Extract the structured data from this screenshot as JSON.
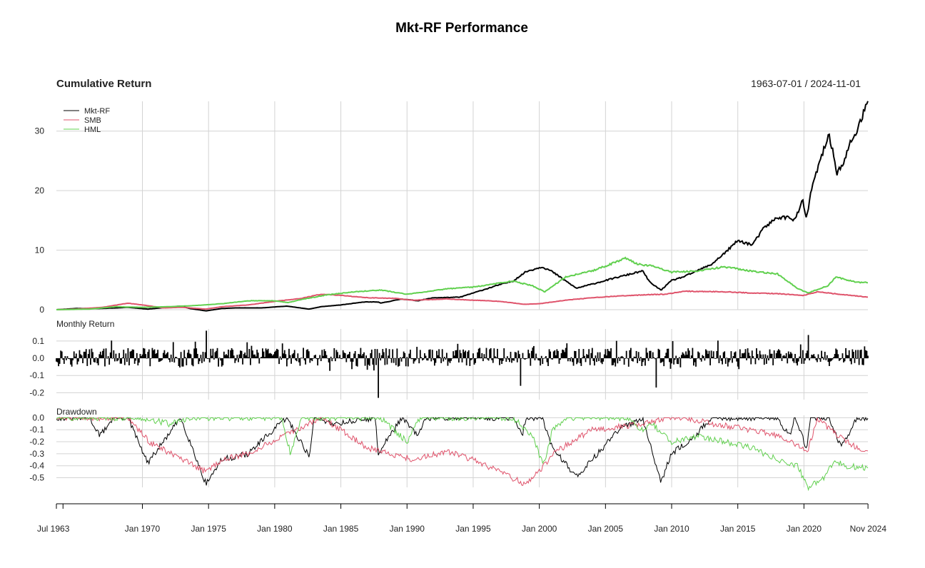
{
  "title": "Mkt-RF Performance",
  "colors": {
    "Mkt-RF": "#000000",
    "SMB": "#DF536B",
    "HML": "#61D04F",
    "grid": "#d3d3d3"
  },
  "chart_data": [
    {
      "type": "line",
      "panel": "cumulative",
      "title": "Cumulative Return",
      "period": "1963-07-01 / 2024-11-01",
      "legend": {
        "position": "top-left",
        "entries": [
          "Mkt-RF",
          "SMB",
          "HML"
        ]
      },
      "x_range": [
        "1963-07",
        "2024-11"
      ],
      "ylim": [
        0,
        35
      ],
      "yticks": [
        "0",
        "10",
        "20",
        "30"
      ],
      "ytick_values": [
        0,
        10,
        20,
        30
      ],
      "grid": true,
      "series": [
        {
          "name": "Mkt-RF",
          "x": [
            1963.5,
            1965,
            1966.8,
            1968,
            1968.9,
            1970.4,
            1972.9,
            1973.6,
            1974.8,
            1976,
            1977,
            1979,
            1980.9,
            1982.6,
            1983.5,
            1985,
            1986.8,
            1987.8,
            1988,
            1989.6,
            1990.8,
            1992,
            1994,
            1995,
            1997,
            1998,
            1999,
            2000.2,
            2000.9,
            2002.8,
            2004,
            2006,
            2007.8,
            2008.4,
            2009.2,
            2010,
            2011,
            2013,
            2014,
            2015,
            2016.1,
            2017,
            2018,
            2019,
            2019.3,
            2019.9,
            2020.2,
            2020.5,
            2021,
            2021.9,
            2022.5,
            2022.8,
            2023,
            2023.5,
            2024,
            2024.5,
            2024.84
          ],
          "y": [
            0,
            0.2,
            0.2,
            0.3,
            0.4,
            0.1,
            0.6,
            0.2,
            -0.2,
            0.2,
            0.3,
            0.3,
            0.6,
            0.1,
            0.5,
            0.8,
            1.3,
            1.3,
            1.1,
            1.8,
            1.5,
            2.0,
            2.1,
            2.8,
            4.2,
            4.8,
            6.4,
            7.2,
            6.5,
            3.6,
            4.3,
            5.5,
            6.5,
            4.5,
            3.3,
            4.9,
            5.6,
            7.6,
            9.5,
            11.6,
            10.9,
            13.8,
            15.5,
            15.5,
            15.0,
            18.3,
            15.2,
            19.5,
            23.5,
            29.5,
            23.0,
            24.0,
            24.5,
            28.0,
            30.0,
            33.0,
            35.0
          ]
        },
        {
          "name": "SMB",
          "x": [
            1963.5,
            1965,
            1967,
            1968.9,
            1970,
            1971.6,
            1973,
            1974.8,
            1976,
            1978,
            1980,
            1982,
            1983.5,
            1985,
            1987,
            1989,
            1990.5,
            1993,
            1995,
            1997,
            1998.9,
            2000,
            2002,
            2004,
            2006,
            2008,
            2009.5,
            2011,
            2014,
            2016,
            2018,
            2020,
            2021,
            2024.84
          ],
          "y": [
            0,
            0.1,
            0.4,
            1.1,
            0.8,
            0.3,
            0.4,
            0.1,
            0.5,
            0.8,
            1.4,
            1.9,
            2.6,
            2.4,
            2.0,
            1.9,
            1.6,
            1.8,
            1.6,
            1.4,
            0.9,
            1.0,
            1.6,
            2.0,
            2.3,
            2.5,
            2.6,
            3.1,
            3.0,
            2.8,
            2.7,
            2.4,
            3.0,
            2.1
          ]
        },
        {
          "name": "HML",
          "x": [
            1963.5,
            1966,
            1968,
            1970,
            1972,
            1974,
            1976,
            1978,
            1980,
            1981,
            1982,
            1984,
            1986,
            1988,
            1990,
            1993,
            1995,
            1998,
            1999.5,
            2000.4,
            2002,
            2004,
            2006.5,
            2007.5,
            2008.5,
            2010,
            2012,
            2014,
            2016,
            2018,
            2019.5,
            2020.3,
            2021.8,
            2022.4,
            2024,
            2024.84
          ],
          "y": [
            0,
            0.1,
            0.5,
            0.4,
            0.5,
            0.7,
            1.0,
            1.5,
            1.5,
            1.2,
            1.7,
            2.5,
            3.0,
            3.3,
            2.6,
            3.5,
            3.8,
            4.8,
            4.0,
            3.0,
            5.5,
            6.5,
            8.6,
            7.6,
            7.4,
            6.3,
            6.5,
            7.2,
            6.5,
            6.0,
            3.6,
            2.8,
            4.0,
            5.5,
            4.6,
            4.6
          ]
        }
      ]
    },
    {
      "type": "bar",
      "panel": "monthly",
      "title": "Monthly Return",
      "series_name": "Mkt-RF",
      "ylim": [
        -0.24,
        0.17
      ],
      "yticks": [
        "0.1",
        "0.0",
        "-0.1",
        "-0.2"
      ],
      "ytick_values": [
        0.1,
        0,
        -0.1,
        -0.2
      ],
      "grid": true,
      "noted_points": [
        {
          "x": 1974.8,
          "y": 0.16
        },
        {
          "x": 1987.8,
          "y": -0.23
        },
        {
          "x": 2008.8,
          "y": -0.17
        },
        {
          "x": 2020.3,
          "y": 0.135
        },
        {
          "x": 1998.6,
          "y": -0.16
        }
      ]
    },
    {
      "type": "line",
      "panel": "drawdown",
      "title": "Drawdown",
      "ylim": [
        -0.58,
        0.02
      ],
      "yticks": [
        "0.0",
        "-0.1",
        "-0.2",
        "-0.3",
        "-0.4",
        "-0.5"
      ],
      "ytick_values": [
        0,
        -0.1,
        -0.2,
        -0.3,
        -0.4,
        -0.5
      ],
      "grid": true,
      "series": [
        {
          "name": "Mkt-RF",
          "x": [
            1963.5,
            1966,
            1966.8,
            1967.8,
            1968.9,
            1970.4,
            1972.9,
            1974.8,
            1976,
            1978,
            1980.9,
            1982.6,
            1983,
            1984.5,
            1987.6,
            1987.8,
            1989.6,
            1990.8,
            1991.5,
            1998,
            1998.7,
            1999,
            2000.2,
            2001,
            2002.8,
            2004,
            2006,
            2007.8,
            2009.2,
            2010,
            2011.8,
            2013,
            2018,
            2018.9,
            2019.3,
            2020.2,
            2020.5,
            2021.9,
            2022.8,
            2023.5,
            2024,
            2024.84
          ],
          "y": [
            0,
            0,
            -0.15,
            0,
            0,
            -0.38,
            0,
            -0.55,
            -0.35,
            -0.3,
            0,
            -0.32,
            0,
            -0.05,
            0,
            -0.3,
            0,
            -0.15,
            0,
            0,
            -0.15,
            0,
            0,
            -0.25,
            -0.49,
            -0.35,
            -0.1,
            0,
            -0.53,
            -0.3,
            -0.15,
            0,
            0,
            -0.15,
            0,
            -0.25,
            0,
            0,
            -0.25,
            -0.12,
            0,
            0
          ]
        },
        {
          "name": "SMB",
          "x": [
            1963.5,
            1968.9,
            1970.5,
            1973,
            1974.8,
            1976,
            1978,
            1983.5,
            1985,
            1987,
            1990.5,
            1993,
            1995,
            1998.9,
            2000,
            2001,
            2004,
            2008,
            2009.5,
            2011,
            2013,
            2016,
            2018,
            2020.3,
            2021,
            2022.5,
            2024.84
          ],
          "y": [
            0,
            0,
            -0.2,
            -0.35,
            -0.45,
            -0.35,
            -0.3,
            0,
            -0.1,
            -0.25,
            -0.35,
            -0.28,
            -0.35,
            -0.55,
            -0.45,
            -0.3,
            -0.1,
            -0.05,
            0,
            0,
            -0.05,
            -0.1,
            -0.15,
            -0.28,
            0,
            -0.15,
            -0.3
          ]
        },
        {
          "name": "HML",
          "x": [
            1963.5,
            1970,
            1972,
            1974,
            1976,
            1978,
            1980.5,
            1981.2,
            1982,
            1984,
            1988,
            1990,
            1991,
            1998,
            1999.5,
            2000.3,
            2001,
            2002,
            2006.5,
            2007.8,
            2008.5,
            2010,
            2012,
            2014,
            2016,
            2018,
            2019.5,
            2020.3,
            2021.5,
            2022.4,
            2023,
            2024.84
          ],
          "y": [
            0,
            0,
            -0.05,
            0,
            0,
            0,
            0,
            -0.3,
            0,
            0,
            0,
            -0.2,
            0,
            0,
            -0.15,
            -0.4,
            -0.1,
            0,
            0,
            -0.1,
            -0.05,
            -0.2,
            -0.15,
            -0.2,
            -0.25,
            -0.35,
            -0.4,
            -0.58,
            -0.5,
            -0.35,
            -0.4,
            -0.42
          ]
        }
      ]
    }
  ],
  "x_axis": {
    "labels": [
      "Jul 1963",
      "Jan 1970",
      "Jan 1975",
      "Jan 1980",
      "Jan 1985",
      "Jan 1990",
      "Jan 1995",
      "Jan 2000",
      "Jan 2005",
      "Jan 2010",
      "Jan 2015",
      "Jan 2020",
      "Nov 2024"
    ],
    "values": [
      1963.5,
      1970,
      1975,
      1980,
      1985,
      1990,
      1995,
      2000,
      2005,
      2010,
      2015,
      2020,
      2024.84
    ]
  }
}
